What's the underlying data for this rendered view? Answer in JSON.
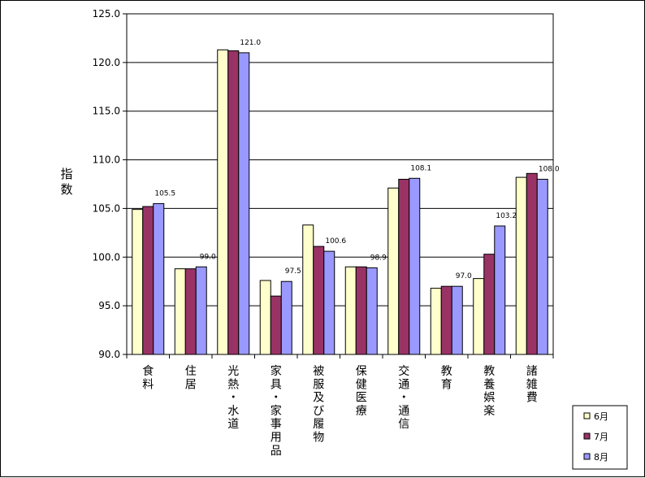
{
  "chart_data": {
    "type": "bar",
    "ylabel": "指数",
    "ylim": [
      90,
      125
    ],
    "yticks": [
      "90.0",
      "95.0",
      "100.0",
      "105.0",
      "110.0",
      "115.0",
      "120.0",
      "125.0"
    ],
    "grid": true,
    "legend_position": "bottom-right",
    "categories": [
      "食料",
      "住居",
      "光熱・水道",
      "家具・家事用品",
      "被服及び履物",
      "保健医療",
      "交通・通信",
      "教育",
      "教養娯楽",
      "諸雑費"
    ],
    "series": [
      {
        "name": "6月",
        "color": "#ffffcc",
        "values": [
          104.9,
          98.8,
          121.3,
          97.6,
          103.3,
          99.0,
          107.1,
          96.8,
          97.8,
          108.2
        ]
      },
      {
        "name": "7月",
        "color": "#993366",
        "values": [
          105.2,
          98.8,
          121.2,
          96.0,
          101.1,
          99.0,
          108.0,
          97.0,
          100.3,
          108.6
        ]
      },
      {
        "name": "8月",
        "color": "#9999ff",
        "values": [
          105.5,
          99.0,
          121.0,
          97.5,
          100.6,
          98.9,
          108.1,
          97.0,
          103.2,
          108.0
        ]
      }
    ],
    "data_labels": {
      "series": "8月",
      "values": [
        "105.5",
        "99.0",
        "121.0",
        "97.5",
        "100.6",
        "98.9",
        "108.1",
        "97.0",
        "103.2",
        "108.0"
      ]
    }
  }
}
